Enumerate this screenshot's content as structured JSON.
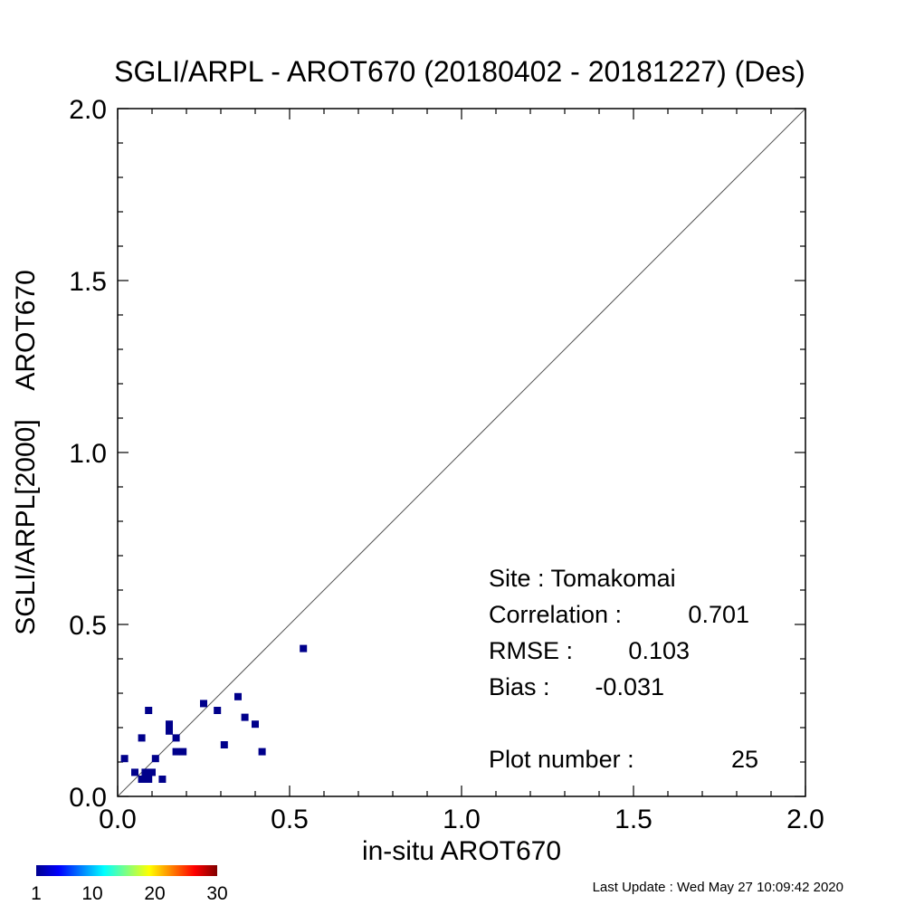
{
  "chart_data": {
    "type": "scatter",
    "title": "SGLI/ARPL - AROT670 (20180402 - 20181227) (Des)",
    "xlabel": "in-situ AROT670",
    "ylabel": "SGLI/ARPL[2000]    AROT670",
    "xlim": [
      0,
      2
    ],
    "ylim": [
      0,
      2
    ],
    "x_ticks": [
      "0.0",
      "0.5",
      "1.0",
      "1.5",
      "2.0"
    ],
    "y_ticks": [
      "0.0",
      "0.5",
      "1.0",
      "1.5",
      "2.0"
    ],
    "reference_line": "1:1",
    "marker_color": "#00008b",
    "points": [
      {
        "x": 0.02,
        "y": 0.11
      },
      {
        "x": 0.05,
        "y": 0.07
      },
      {
        "x": 0.07,
        "y": 0.05
      },
      {
        "x": 0.07,
        "y": 0.17
      },
      {
        "x": 0.08,
        "y": 0.07
      },
      {
        "x": 0.09,
        "y": 0.05
      },
      {
        "x": 0.09,
        "y": 0.25
      },
      {
        "x": 0.1,
        "y": 0.07
      },
      {
        "x": 0.11,
        "y": 0.11
      },
      {
        "x": 0.13,
        "y": 0.05
      },
      {
        "x": 0.15,
        "y": 0.19
      },
      {
        "x": 0.15,
        "y": 0.21
      },
      {
        "x": 0.17,
        "y": 0.17
      },
      {
        "x": 0.17,
        "y": 0.13
      },
      {
        "x": 0.19,
        "y": 0.13
      },
      {
        "x": 0.25,
        "y": 0.27
      },
      {
        "x": 0.29,
        "y": 0.25
      },
      {
        "x": 0.31,
        "y": 0.15
      },
      {
        "x": 0.35,
        "y": 0.29
      },
      {
        "x": 0.37,
        "y": 0.23
      },
      {
        "x": 0.4,
        "y": 0.21
      },
      {
        "x": 0.42,
        "y": 0.13
      },
      {
        "x": 0.54,
        "y": 0.43
      }
    ],
    "colorbar": {
      "labels": [
        "1",
        "10",
        "20",
        "30"
      ],
      "colors": [
        "#00008f",
        "#0000ff",
        "#0080ff",
        "#00ffff",
        "#80ff80",
        "#ffff00",
        "#ff8000",
        "#ff0000",
        "#800000"
      ]
    }
  },
  "stats": {
    "site_label": "Site : Tomakomai",
    "correlation_label": "Correlation :",
    "correlation_value": "0.701",
    "rmse_label": "RMSE :",
    "rmse_value": "0.103",
    "bias_label": "Bias :",
    "bias_value": "-0.031",
    "plot_number_label": "Plot number :",
    "plot_number_value": "25"
  },
  "footer": {
    "last_update": "Last Update : Wed May 27 10:09:42 2020"
  }
}
